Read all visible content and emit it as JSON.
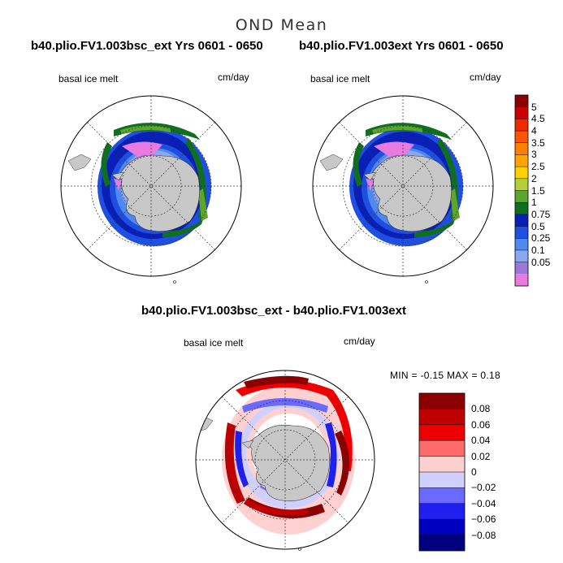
{
  "figure": {
    "title": "OND Mean"
  },
  "panels": [
    {
      "title": "b40.plio.FV1.003bsc_ext  Yrs 0601 - 0650",
      "variable": "basal ice melt",
      "units": "cm/day"
    },
    {
      "title": "b40.plio.FV1.003ext  Yrs 0601 - 0650",
      "variable": "basal ice melt",
      "units": "cm/day"
    },
    {
      "title": "b40.plio.FV1.003bsc_ext - b40.plio.FV1.003ext",
      "variable": "basal ice melt",
      "units": "cm/day",
      "stats": "MIN =   -0.15 MAX =    0.18"
    }
  ],
  "colorbar_top": {
    "labels": [
      "5",
      "4.5",
      "4",
      "3.5",
      "3",
      "2.5",
      "2",
      "1.5",
      "1",
      "0.75",
      "0.5",
      "0.25",
      "0.1",
      "0.05"
    ],
    "colors": [
      "#8b0000",
      "#cc0000",
      "#ee2a00",
      "#ff5500",
      "#ff7f00",
      "#ffa500",
      "#ffd000",
      "#b5cf36",
      "#5ea62b",
      "#106f1c",
      "#0a1fb4",
      "#1f4fe0",
      "#5088ef",
      "#8aa8f2",
      "#9a78d8",
      "#e87ae0"
    ]
  },
  "colorbar_diff": {
    "labels": [
      "0.08",
      "0.06",
      "0.04",
      "0.02",
      "0",
      "−0.02",
      "−0.04",
      "−0.06",
      "−0.08"
    ],
    "colors": [
      "#8b0000",
      "#c00000",
      "#ee0000",
      "#ff6a6a",
      "#ffd0d0",
      "#d0d0ff",
      "#6a6aff",
      "#2020ee",
      "#0000c0",
      "#000080"
    ]
  },
  "colors": {
    "land": "#c8c8c8",
    "ocean": "#ffffff"
  }
}
